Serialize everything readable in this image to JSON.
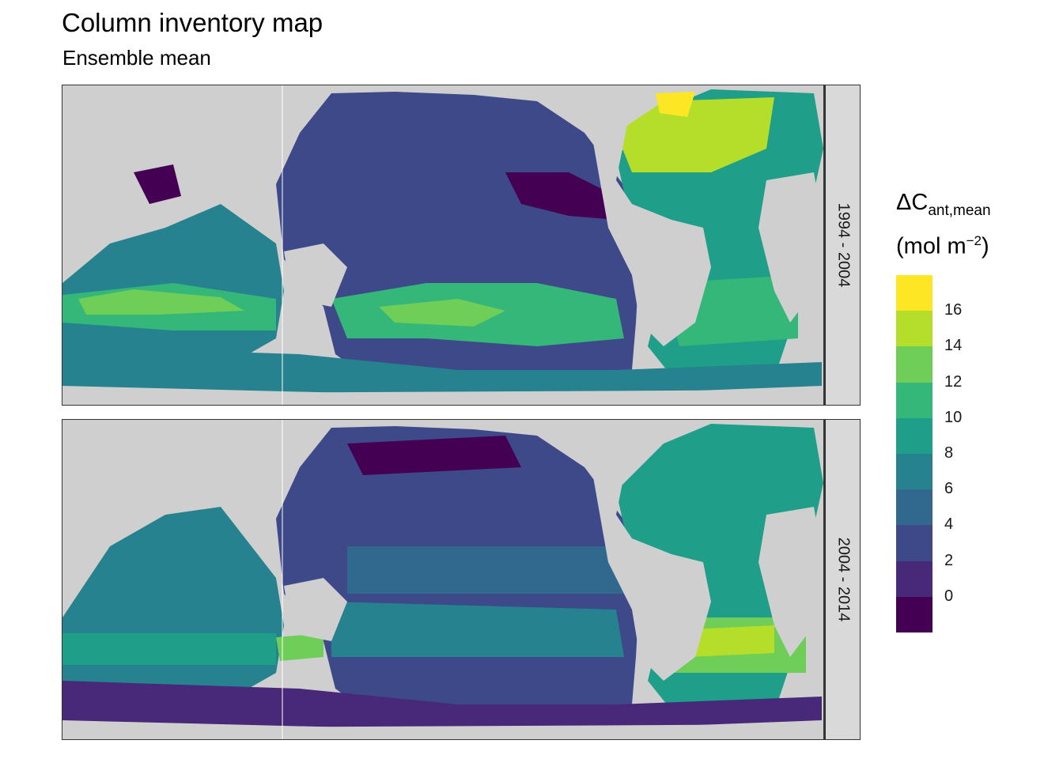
{
  "title": "Column inventory map",
  "subtitle": "Ensemble mean",
  "panels": [
    {
      "label": "1994 - 2004"
    },
    {
      "label": "2004 - 2014"
    }
  ],
  "legend": {
    "title_main": "ΔC",
    "title_sub": "ant,mean",
    "unit_open": "(mol m",
    "unit_sup": "−2",
    "unit_close": ")",
    "bins": [
      {
        "range": [
          -2,
          0
        ],
        "color": "#440154"
      },
      {
        "range": [
          0,
          2
        ],
        "color": "#482878"
      },
      {
        "range": [
          2,
          4
        ],
        "color": "#3e4989"
      },
      {
        "range": [
          4,
          6
        ],
        "color": "#31688e"
      },
      {
        "range": [
          6,
          8
        ],
        "color": "#26828e"
      },
      {
        "range": [
          8,
          10
        ],
        "color": "#1f9e89"
      },
      {
        "range": [
          10,
          12
        ],
        "color": "#35b779"
      },
      {
        "range": [
          12,
          14
        ],
        "color": "#6ece58"
      },
      {
        "range": [
          14,
          16
        ],
        "color": "#b5de2b"
      },
      {
        "range": [
          16,
          18
        ],
        "color": "#fde725"
      }
    ],
    "ticks": [
      "0",
      "2",
      "4",
      "6",
      "8",
      "10",
      "12",
      "14",
      "16"
    ]
  },
  "colors": {
    "land": "#cfcfcf",
    "ice": "#ffffff"
  }
}
